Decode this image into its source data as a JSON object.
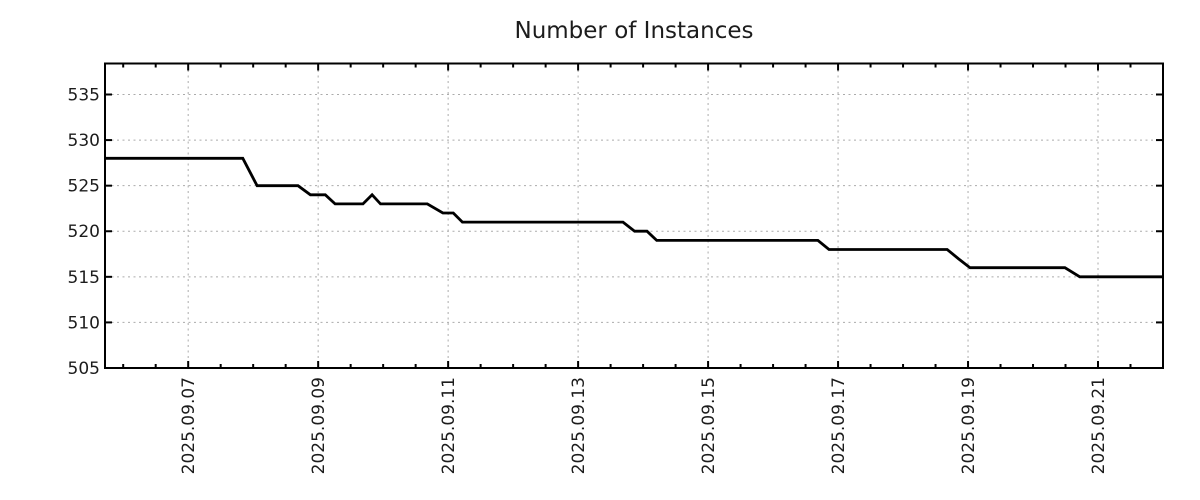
{
  "page": {
    "background": "#ffffff"
  },
  "chart_data": {
    "type": "line",
    "title": "Number of Instances",
    "x_axis": {
      "unit": "date (day of September 2025, fractional)",
      "range_days": [
        5.72,
        22.0
      ],
      "tick_days": [
        7,
        9,
        11,
        13,
        15,
        17,
        19,
        21
      ],
      "tick_labels": [
        "2025.09.07",
        "2025.09.09",
        "2025.09.11",
        "2025.09.13",
        "2025.09.15",
        "2025.09.17",
        "2025.09.19",
        "2025.09.21"
      ],
      "minor_tick_interval_days": 0.5,
      "label_rotation_deg": -90
    },
    "y_axis": {
      "range": [
        505,
        538.4
      ],
      "tick_values": [
        505,
        510,
        515,
        520,
        525,
        530,
        535
      ],
      "tick_labels": [
        "505",
        "510",
        "515",
        "520",
        "525",
        "530",
        "535"
      ]
    },
    "series": [
      {
        "name": "instances",
        "color": "#000000",
        "line_width": 2.8,
        "points_day_value": [
          [
            5.72,
            528
          ],
          [
            7.84,
            528
          ],
          [
            8.06,
            525
          ],
          [
            8.69,
            525
          ],
          [
            8.88,
            524
          ],
          [
            9.11,
            524
          ],
          [
            9.26,
            523
          ],
          [
            9.69,
            523
          ],
          [
            9.83,
            524
          ],
          [
            9.96,
            523
          ],
          [
            10.68,
            523
          ],
          [
            10.92,
            522
          ],
          [
            11.08,
            522
          ],
          [
            11.22,
            521
          ],
          [
            13.69,
            521
          ],
          [
            13.87,
            520
          ],
          [
            14.06,
            520
          ],
          [
            14.21,
            519
          ],
          [
            16.69,
            519
          ],
          [
            16.86,
            518
          ],
          [
            18.68,
            518
          ],
          [
            18.85,
            517
          ],
          [
            19.03,
            516
          ],
          [
            20.49,
            516
          ],
          [
            20.72,
            515
          ],
          [
            22.0,
            515
          ]
        ]
      }
    ],
    "grid": {
      "style": "dotted",
      "visible": true,
      "color": "#ababab"
    },
    "legend": {
      "visible": false
    },
    "styles": {
      "border_color": "#000000",
      "tick_color": "#000000",
      "title_color": "#1c1c1c",
      "tick_label_color": "#1c1c1c"
    }
  }
}
